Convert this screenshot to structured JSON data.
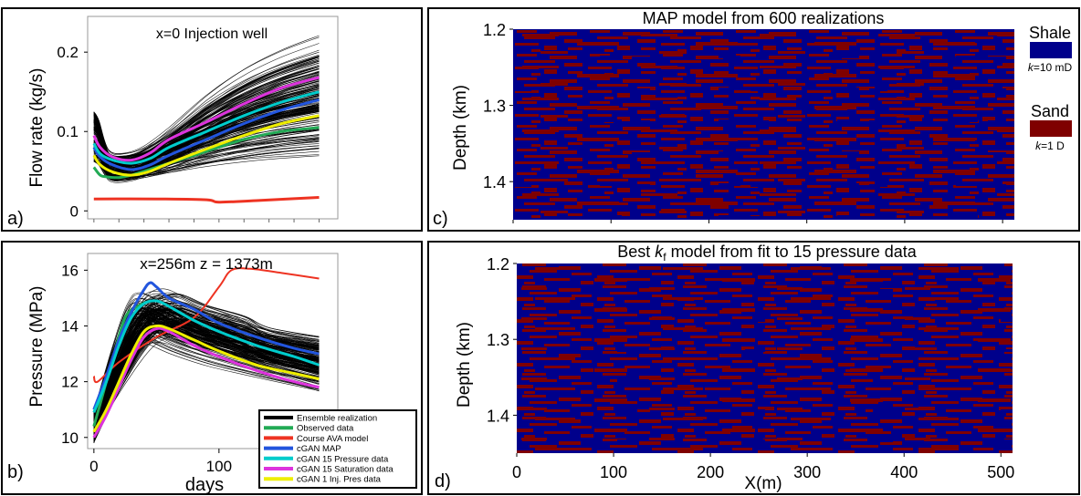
{
  "colors": {
    "shale": "#00008b",
    "sand": "#7f0000",
    "ensemble": "#000000",
    "observed": "#22aa55",
    "course": "#ee3322",
    "cgan_map": "#2255dd",
    "cgan_pressure": "#00cccc",
    "cgan_saturation": "#dd33dd",
    "cgan_injpres": "#eeee00"
  },
  "chart_data": [
    {
      "panel": "a)",
      "type": "line",
      "title": "x=0 Injection well",
      "xlabel": "",
      "ylabel": "Flow rate (kg/s)",
      "xlim": [
        -5,
        195
      ],
      "ylim": [
        -0.01,
        0.245
      ],
      "y_ticks": [
        "0",
        "0.1",
        "0.2"
      ],
      "y_tick_values": [
        0,
        0.1,
        0.2
      ],
      "ensemble": {
        "count": 200,
        "start_y": [
          0.062,
          0.125
        ],
        "dip_y": [
          0.035,
          0.075
        ],
        "end_y": [
          0.06,
          0.225
        ]
      },
      "series": [
        {
          "name": "Observed data",
          "color": "#22aa55",
          "x": [
            0,
            5,
            10,
            20,
            30,
            40,
            60,
            90,
            120,
            150,
            180
          ],
          "y": [
            0.055,
            0.045,
            0.043,
            0.042,
            0.045,
            0.05,
            0.06,
            0.075,
            0.09,
            0.1,
            0.105
          ]
        },
        {
          "name": "Course AVA model",
          "color": "#ee3322",
          "x": [
            0,
            50,
            90,
            100,
            130,
            180
          ],
          "y": [
            0.015,
            0.015,
            0.014,
            0.011,
            0.013,
            0.017
          ]
        },
        {
          "name": "cGAN MAP",
          "color": "#2255dd",
          "x": [
            0,
            5,
            15,
            30,
            45,
            60,
            90,
            120,
            150,
            180
          ],
          "y": [
            0.08,
            0.068,
            0.058,
            0.052,
            0.058,
            0.07,
            0.09,
            0.11,
            0.127,
            0.14
          ]
        },
        {
          "name": "cGAN 15 Pressure data",
          "color": "#00cccc",
          "x": [
            0,
            5,
            15,
            30,
            45,
            60,
            90,
            120,
            150,
            180
          ],
          "y": [
            0.085,
            0.072,
            0.064,
            0.06,
            0.066,
            0.08,
            0.1,
            0.12,
            0.137,
            0.15
          ]
        },
        {
          "name": "cGAN 15 Saturation data",
          "color": "#dd33dd",
          "x": [
            0,
            5,
            15,
            30,
            45,
            60,
            90,
            120,
            150,
            180
          ],
          "y": [
            0.095,
            0.08,
            0.068,
            0.064,
            0.073,
            0.09,
            0.112,
            0.135,
            0.155,
            0.168
          ]
        },
        {
          "name": "cGAN 1 Inj. Pres data",
          "color": "#eeee00",
          "x": [
            0,
            5,
            15,
            30,
            45,
            60,
            90,
            120,
            150,
            180
          ],
          "y": [
            0.07,
            0.058,
            0.049,
            0.045,
            0.05,
            0.06,
            0.078,
            0.095,
            0.11,
            0.12
          ]
        }
      ]
    },
    {
      "panel": "b)",
      "type": "line",
      "title": "x=256m z = 1373m",
      "xlabel": "days",
      "ylabel": "Pressure (MPa)",
      "xlim": [
        -5,
        195
      ],
      "ylim": [
        9.6,
        16.6
      ],
      "x_ticks": [
        "0",
        "100"
      ],
      "x_tick_values": [
        0,
        100
      ],
      "y_ticks": [
        "10",
        "12",
        "14",
        "16"
      ],
      "y_tick_values": [
        10,
        12,
        14,
        16
      ],
      "ensemble": {
        "count": 200,
        "start_y": [
          9.8,
          11.0
        ],
        "peak_y": [
          13.4,
          15.4
        ],
        "end_y": [
          11.6,
          13.8
        ]
      },
      "series": [
        {
          "name": "Observed data",
          "color": "#22aa55",
          "x": [
            0,
            5,
            15,
            25,
            35,
            45
          ],
          "y": [
            10.4,
            11.2,
            12.8,
            14.3,
            14.7,
            14.9
          ]
        },
        {
          "name": "Course AVA model",
          "color": "#ee3322",
          "x": [
            0,
            3,
            20,
            50,
            80,
            100,
            110,
            125,
            150,
            180
          ],
          "y": [
            12.2,
            12.0,
            12.7,
            13.6,
            14.3,
            15.4,
            16.0,
            16.05,
            15.9,
            15.7
          ]
        },
        {
          "name": "cGAN MAP",
          "color": "#2255dd",
          "x": [
            0,
            10,
            20,
            30,
            40,
            45,
            50,
            60,
            80,
            100,
            130,
            160,
            180
          ],
          "y": [
            11.0,
            12.2,
            13.5,
            14.5,
            15.3,
            15.55,
            15.4,
            15.0,
            14.6,
            14.1,
            13.6,
            13.2,
            13.0
          ]
        },
        {
          "name": "cGAN 15 Pressure data",
          "color": "#00cccc",
          "x": [
            0,
            10,
            20,
            30,
            40,
            50,
            60,
            80,
            100,
            130,
            160,
            180
          ],
          "y": [
            10.9,
            12.0,
            13.3,
            14.3,
            14.8,
            14.9,
            14.7,
            14.2,
            13.8,
            13.3,
            12.9,
            12.6
          ]
        },
        {
          "name": "cGAN 15 Saturation data",
          "color": "#dd33dd",
          "x": [
            0,
            10,
            20,
            30,
            40,
            50,
            60,
            80,
            100,
            130,
            160,
            180
          ],
          "y": [
            10.0,
            10.8,
            11.8,
            12.8,
            13.6,
            13.9,
            13.8,
            13.3,
            12.9,
            12.4,
            12.0,
            11.8
          ]
        },
        {
          "name": "cGAN 1 Inj. Pres data",
          "color": "#eeee00",
          "x": [
            0,
            10,
            20,
            30,
            40,
            50,
            60,
            80,
            100,
            130,
            160,
            180
          ],
          "y": [
            10.2,
            11.0,
            12.0,
            13.0,
            13.8,
            14.0,
            13.9,
            13.5,
            13.1,
            12.6,
            12.3,
            12.1
          ]
        }
      ],
      "legend": {
        "position": "bottom-right",
        "entries": [
          "Ensemble realization",
          "Observed data",
          "Course AVA model",
          "cGAN MAP",
          "cGAN 15 Pressure data",
          "cGAN 15 Saturation data",
          "cGAN 1 Inj. Pres data"
        ]
      }
    },
    {
      "panel": "c)",
      "type": "heatmap",
      "title": "MAP model from 600 realizations",
      "xlabel": "",
      "ylabel": "Depth (km)",
      "xlim": [
        0,
        512
      ],
      "ylim": [
        1.2,
        1.45
      ],
      "y_ticks": [
        "1.2",
        "1.3",
        "1.4"
      ],
      "y_tick_values": [
        1.2,
        1.3,
        1.4
      ],
      "categories": [
        "Shale",
        "Sand"
      ]
    },
    {
      "panel": "d)",
      "type": "heatmap",
      "title_prefix": "Best ",
      "title_k": "k",
      "title_sub": "f",
      "title_suffix": " model from fit to 15 pressure data",
      "xlabel": "X(m)",
      "ylabel": "Depth (km)",
      "xlim": [
        0,
        512
      ],
      "ylim": [
        1.2,
        1.45
      ],
      "x_ticks": [
        "0",
        "100",
        "200",
        "300",
        "400",
        "500"
      ],
      "x_tick_values": [
        0,
        100,
        200,
        300,
        400,
        500
      ],
      "y_ticks": [
        "1.2",
        "1.3",
        "1.4"
      ],
      "y_tick_values": [
        1.2,
        1.3,
        1.4
      ],
      "categories": [
        "Shale",
        "Sand"
      ]
    }
  ],
  "facies_legend": {
    "shale_label": "Shale",
    "shale_k": "k",
    "shale_value": "=10 mD",
    "sand_label": "Sand",
    "sand_k": "k",
    "sand_value": "=1 D"
  }
}
